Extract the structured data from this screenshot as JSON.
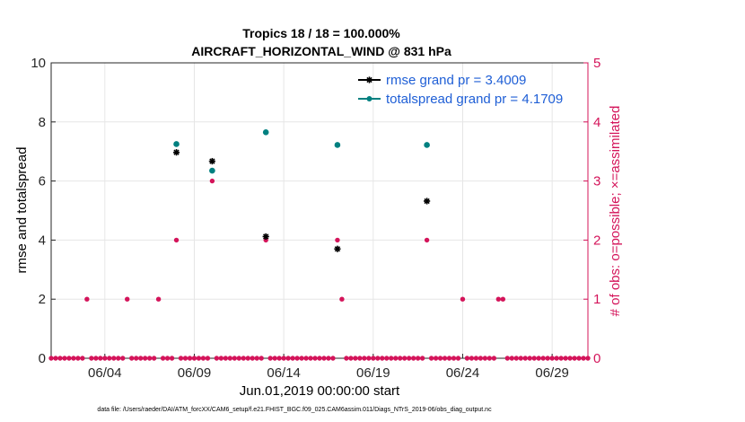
{
  "chart_data": {
    "type": "scatter",
    "title": "Tropics 18 / 18 = 100.000%",
    "subtitle": "AIRCRAFT_HORIZONTAL_WIND @ 831 hPa",
    "xlabel": "Jun.01,2019 00:00:00 start",
    "ylabel": "rmse and totalspread",
    "ylabel_right": "# of obs: o=possible; ×=assimilated",
    "xlim": [
      1,
      31
    ],
    "ylim": [
      0,
      10
    ],
    "ylim_right": [
      0,
      5
    ],
    "x_ticks": [
      4,
      9,
      14,
      19,
      24,
      29
    ],
    "x_tick_labels": [
      "06/04",
      "06/09",
      "06/14",
      "06/19",
      "06/24",
      "06/29"
    ],
    "y_ticks": [
      0,
      2,
      4,
      6,
      8,
      10
    ],
    "y_tick_labels": [
      "0",
      "2",
      "4",
      "6",
      "8",
      "10"
    ],
    "y_right_ticks": [
      0,
      1,
      2,
      3,
      4,
      5
    ],
    "y_right_tick_labels": [
      "0",
      "1",
      "2",
      "3",
      "4",
      "5"
    ],
    "grid": true,
    "legend_position": "top-right",
    "series": [
      {
        "name": "rmse grand pr = 3.4009",
        "color": "#000000",
        "axis": "left",
        "points": [
          [
            8.0,
            6.97
          ],
          [
            10.0,
            6.67
          ],
          [
            13.0,
            4.12
          ],
          [
            17.0,
            3.7
          ],
          [
            22.0,
            5.32
          ]
        ]
      },
      {
        "name": "totalspread grand pr = 4.1709",
        "color": "#008080",
        "axis": "left",
        "points": [
          [
            8.0,
            7.25
          ],
          [
            10.0,
            6.35
          ],
          [
            13.0,
            7.65
          ],
          [
            17.0,
            7.22
          ],
          [
            22.0,
            7.22
          ]
        ]
      },
      {
        "name": "obs possible",
        "color": "#d4145a",
        "axis": "right",
        "nonzero": [
          [
            3.0,
            1
          ],
          [
            5.25,
            1
          ],
          [
            7.0,
            1
          ],
          [
            8.0,
            2
          ],
          [
            10.0,
            3
          ],
          [
            13.0,
            2
          ],
          [
            17.0,
            2
          ],
          [
            17.25,
            1
          ],
          [
            22.0,
            2
          ],
          [
            24.0,
            1
          ],
          [
            26.0,
            1
          ],
          [
            26.25,
            1
          ]
        ],
        "zero_step": 0.25
      }
    ]
  },
  "footer": "data file: /Users/raeder/DAI/ATM_forcXX/CAM6_setup/f.e21.FHIST_BGC.f09_025.CAM6assim.011/Diags_NTrS_2019-06/obs_diag_output.nc"
}
